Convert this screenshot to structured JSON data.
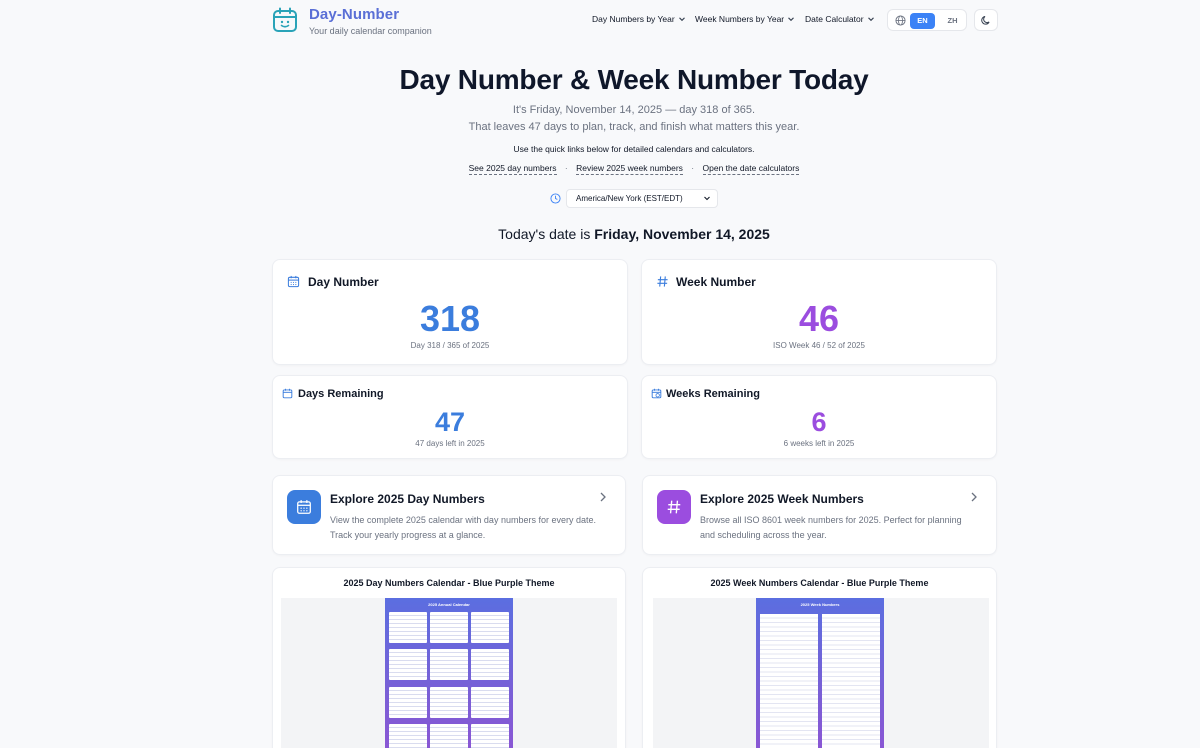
{
  "header": {
    "brand": "Day-Number",
    "tagline": "Your daily calendar companion",
    "nav": [
      {
        "label": "Day Numbers by Year"
      },
      {
        "label": "Week Numbers by Year"
      },
      {
        "label": "Date Calculator"
      }
    ],
    "lang_en": "EN",
    "lang_zh": "ZH",
    "icons": {
      "logo": "calendar-smile-icon",
      "globe": "globe-icon",
      "theme": "moon-icon"
    }
  },
  "hero": {
    "title": "Day Number & Week Number Today",
    "line1": "It's Friday, November 14, 2025 — day 318 of 365.",
    "line2": "That leaves 47 days to plan, track, and finish what matters this year.",
    "line3": "Use the quick links below for detailed calendars and calculators.",
    "links": {
      "day": "See 2025 day numbers",
      "week": "Review 2025 week numbers",
      "calc": "Open the date calculators"
    },
    "timezone": "America/New York (EST/EDT)",
    "today_prefix": "Today's date is",
    "today_date": "Friday, November 14, 2025"
  },
  "stats": {
    "day_number": {
      "title": "Day Number",
      "value": "318",
      "sub": "Day 318 / 365 of 2025"
    },
    "week_number": {
      "title": "Week Number",
      "value": "46",
      "sub": "ISO Week 46 / 52 of 2025"
    },
    "days_remaining": {
      "title": "Days Remaining",
      "value": "47",
      "sub": "47 days left in 2025"
    },
    "weeks_remaining": {
      "title": "Weeks Remaining",
      "value": "6",
      "sub": "6 weeks left in 2025"
    }
  },
  "explore": {
    "day": {
      "title": "Explore 2025 Day Numbers",
      "desc": "View the complete 2025 calendar with day numbers for every date. Track your yearly progress at a glance."
    },
    "week": {
      "title": "Explore 2025 Week Numbers",
      "desc": "Browse all ISO 8601 week numbers for 2025. Perfect for planning and scheduling across the year."
    }
  },
  "previews": {
    "day": "2025 Day Numbers Calendar - Blue Purple Theme",
    "week": "2025 Week Numbers Calendar - Blue Purple Theme"
  },
  "colors": {
    "accent_blue": "#3b7ddd",
    "accent_purple": "#9b4ddf",
    "brand": "#5a6fd6"
  }
}
